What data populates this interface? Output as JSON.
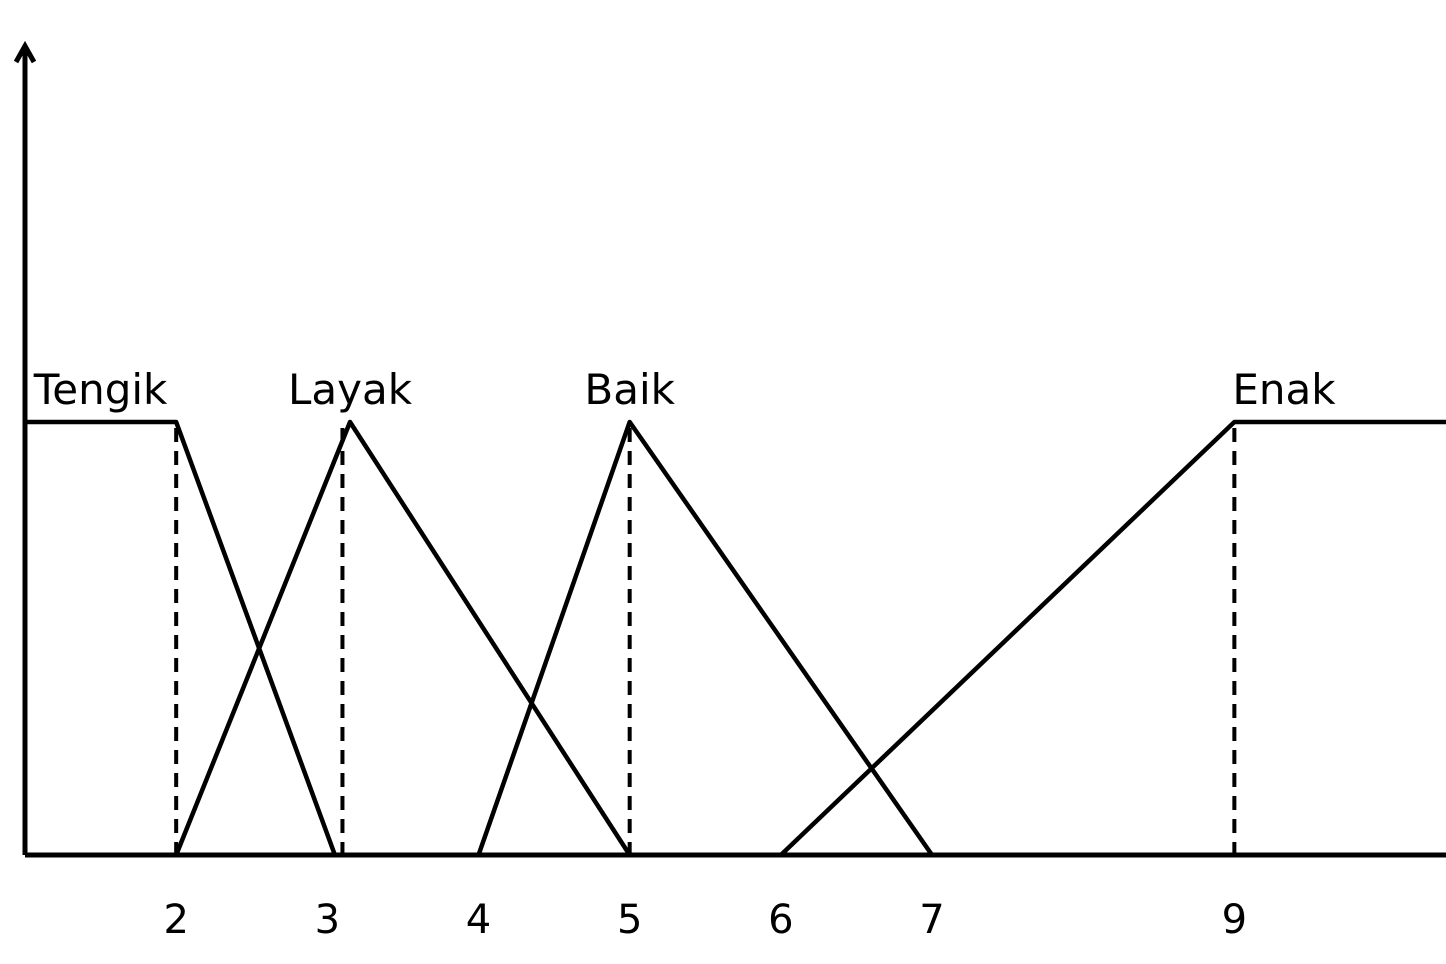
{
  "chart_data": {
    "type": "line",
    "sets": [
      {
        "label": "Tengik",
        "shape": "trapezoid-left",
        "points": [
          [
            1.0,
            1
          ],
          [
            2.0,
            1
          ],
          [
            3.05,
            0
          ]
        ]
      },
      {
        "label": "Layak",
        "shape": "triangle",
        "points": [
          [
            2.0,
            0
          ],
          [
            3.15,
            1
          ],
          [
            5.0,
            0
          ]
        ]
      },
      {
        "label": "Baik",
        "shape": "triangle",
        "points": [
          [
            4.0,
            0
          ],
          [
            5.0,
            1
          ],
          [
            7.0,
            0
          ]
        ]
      },
      {
        "label": "Enak",
        "shape": "trapezoid-right",
        "points": [
          [
            6.0,
            0
          ],
          [
            9.0,
            1
          ],
          [
            10.4,
            1
          ]
        ]
      }
    ],
    "dashed_markers": [
      2,
      3.1,
      5,
      9
    ],
    "x_ticks": [
      "2",
      "3",
      "4",
      "5",
      "6",
      "7",
      "9"
    ],
    "x_tick_values": [
      2,
      3,
      4,
      5,
      6,
      7,
      9
    ],
    "xlim": [
      1.0,
      10.4
    ],
    "ylim": [
      0,
      1
    ],
    "title": "",
    "xlabel": "",
    "ylabel": ""
  }
}
